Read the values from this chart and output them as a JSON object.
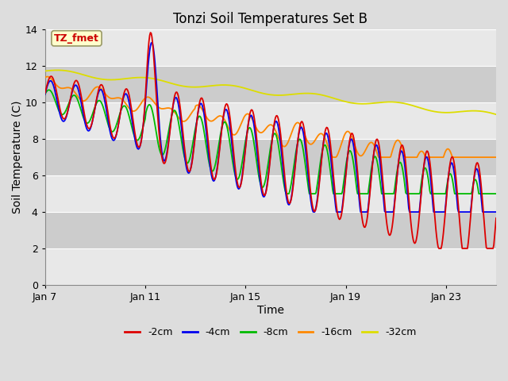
{
  "title": "Tonzi Soil Temperatures Set B",
  "xlabel": "Time",
  "ylabel": "Soil Temperature (C)",
  "annotation_text": "TZ_fmet",
  "annotation_bg": "#ffffcc",
  "annotation_border": "#999966",
  "annotation_text_color": "#cc0000",
  "ylim": [
    0,
    14
  ],
  "yticks": [
    0,
    2,
    4,
    6,
    8,
    10,
    12,
    14
  ],
  "xtick_labels": [
    "Jan 7",
    "Jan 11",
    "Jan 15",
    "Jan 19",
    "Jan 23"
  ],
  "xtick_positions": [
    0,
    4,
    8,
    12,
    16
  ],
  "total_days": 18,
  "colors": {
    "-2cm": "#dd0000",
    "-4cm": "#0000ee",
    "-8cm": "#00bb00",
    "-16cm": "#ff8800",
    "-32cm": "#dddd00"
  },
  "legend_labels": [
    "-2cm",
    "-4cm",
    "-8cm",
    "-16cm",
    "-32cm"
  ],
  "fig_bg_color": "#dddddd",
  "band_light": "#e8e8e8",
  "band_dark": "#cccccc",
  "grid_line_color": "#ffffff",
  "title_fontsize": 12,
  "axis_label_fontsize": 10,
  "tick_fontsize": 9
}
